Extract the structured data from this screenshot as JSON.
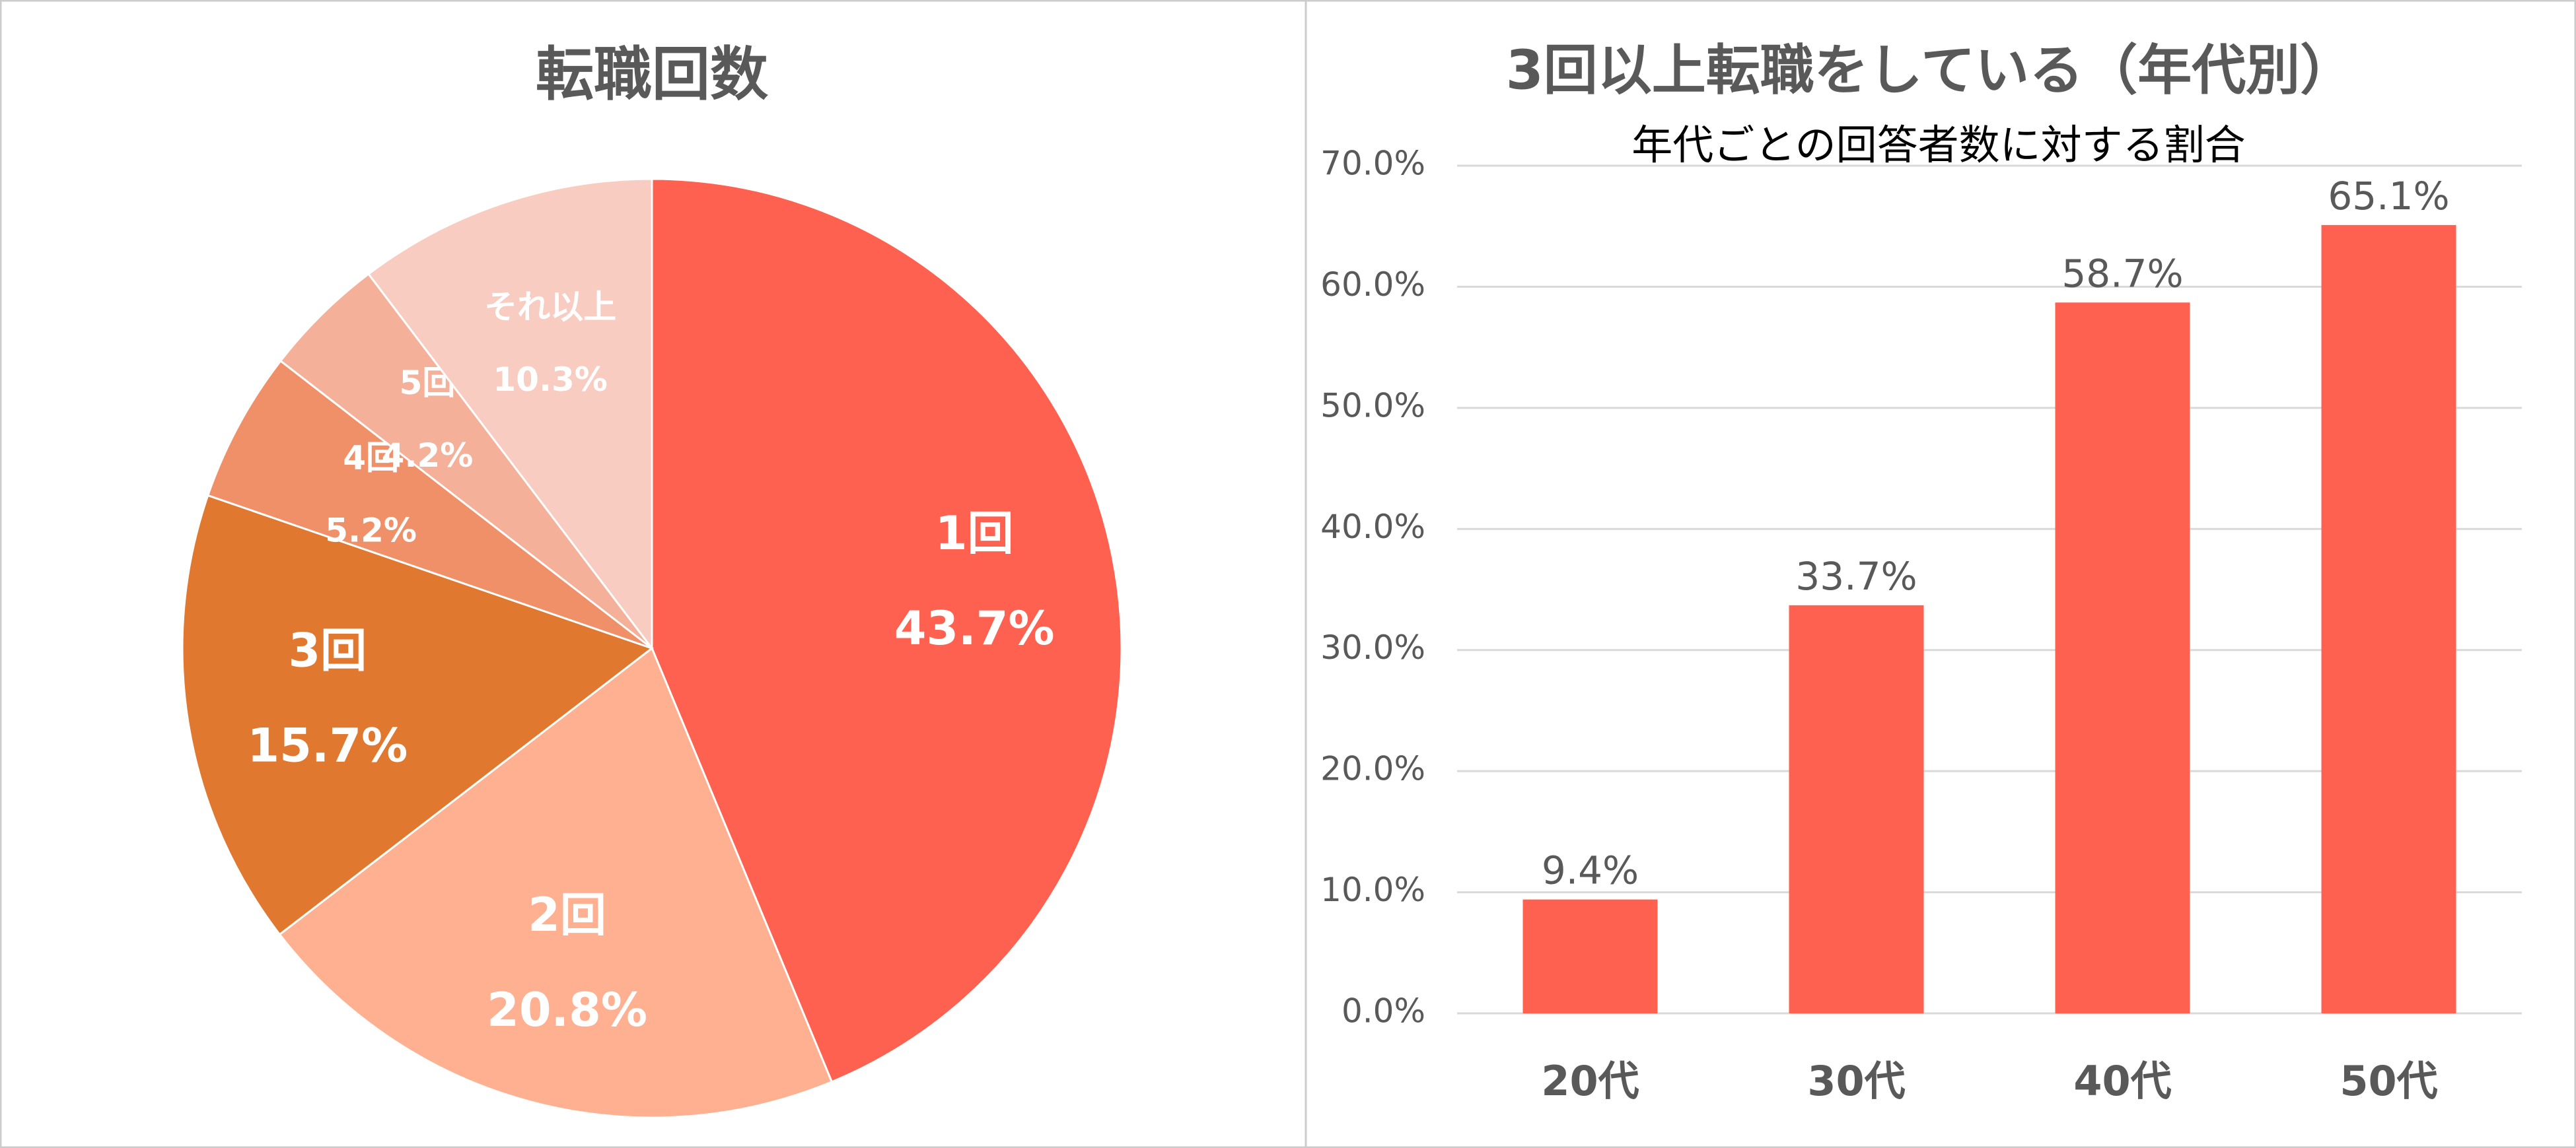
{
  "chart_data": [
    {
      "type": "pie",
      "title": "転職回数",
      "categories": [
        "1回",
        "2回",
        "3回",
        "4回",
        "5回",
        "それ以上"
      ],
      "values": [
        43.7,
        20.8,
        15.7,
        5.2,
        4.2,
        10.3
      ],
      "value_labels": [
        "43.7%",
        "20.8%",
        "15.7%",
        "5.2%",
        "4.2%",
        "10.3%"
      ],
      "colors": [
        "#ff6150",
        "#ffb090",
        "#e07830",
        "#f09068",
        "#f4b098",
        "#f8ccc0"
      ]
    },
    {
      "type": "bar",
      "title": "3回以上転職をしている（年代別）",
      "subtitle": "年代ごとの回答者数に対する割合",
      "categories": [
        "20代",
        "30代",
        "40代",
        "50代"
      ],
      "values": [
        9.4,
        33.7,
        58.7,
        65.1
      ],
      "value_labels": [
        "9.4%",
        "33.7%",
        "58.7%",
        "65.1%"
      ],
      "color": "#ff6150",
      "ylim": [
        0,
        70
      ],
      "yticks": [
        {
          "value": 0,
          "label": "0.0%"
        },
        {
          "value": 10,
          "label": "10.0%"
        },
        {
          "value": 20,
          "label": "20.0%"
        },
        {
          "value": 30,
          "label": "30.0%"
        },
        {
          "value": 40,
          "label": "40.0%"
        },
        {
          "value": 50,
          "label": "50.0%"
        },
        {
          "value": 60,
          "label": "60.0%"
        },
        {
          "value": 70,
          "label": "70.0%"
        }
      ],
      "grid": true
    }
  ]
}
